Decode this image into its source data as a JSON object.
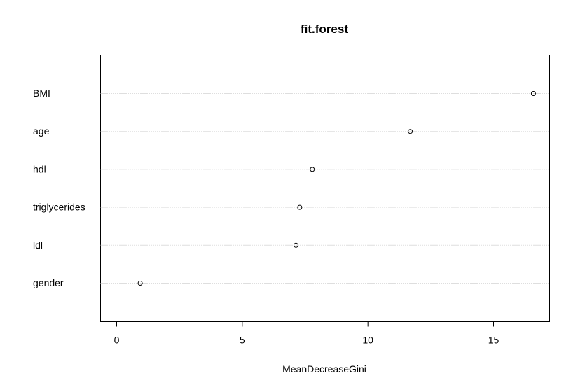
{
  "chart_data": {
    "type": "scatter",
    "subtype": "dotchart",
    "title": "fit.forest",
    "xlabel": "MeanDecreaseGini",
    "ylabel": "",
    "categories": [
      "BMI",
      "age",
      "hdl",
      "triglycerides",
      "ldl",
      "gender"
    ],
    "values": [
      16.6,
      11.7,
      7.8,
      7.3,
      7.15,
      0.95
    ],
    "xlim": [
      -0.45,
      17.6
    ],
    "xticks": [
      0,
      5,
      10,
      15
    ],
    "grid": "horizontal dotted guide lines per category",
    "legend": "none"
  },
  "colors": {
    "background": "#ffffff",
    "frame": "#000000",
    "guide": "#bebebe",
    "point": "#000000"
  }
}
